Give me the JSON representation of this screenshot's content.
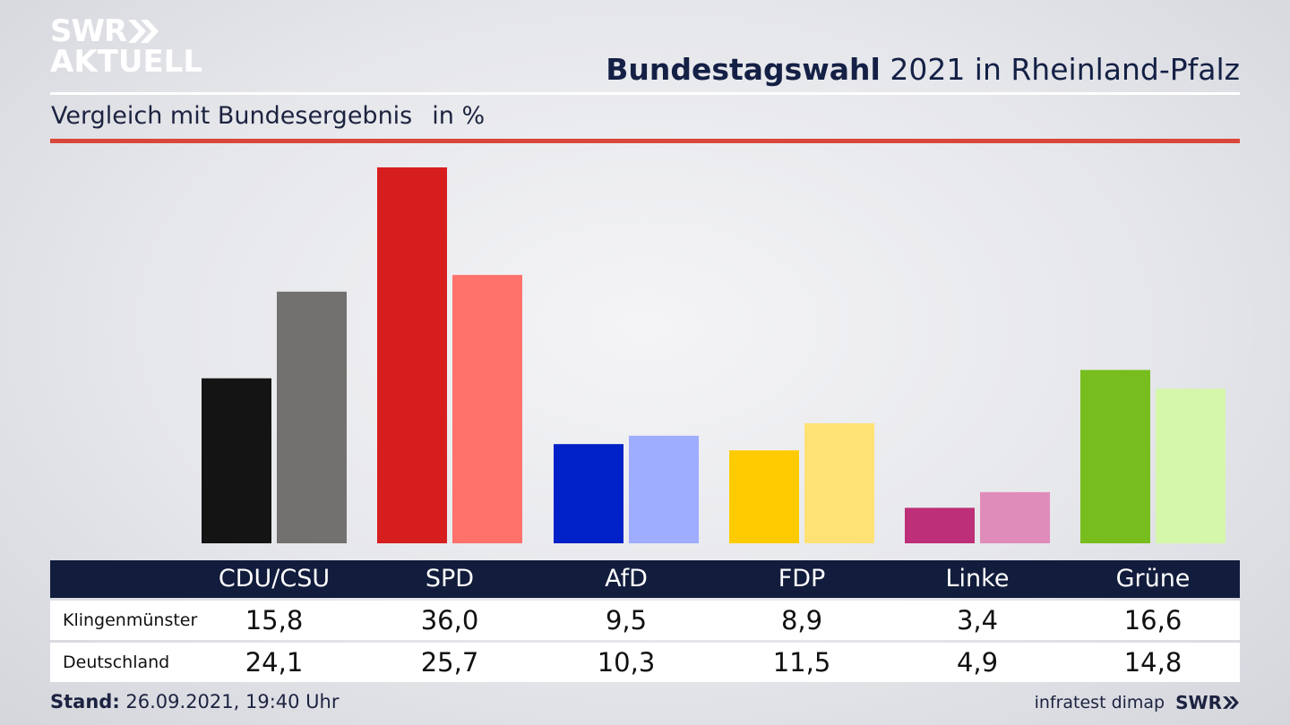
{
  "logo": {
    "line1": "SWR",
    "line2": "AKTUELL"
  },
  "header": {
    "title_bold": "Bundestagswahl",
    "title_rest": " 2021 in Rheinland-Pfalz"
  },
  "subheader": {
    "text": "Vergleich mit Bundesergebnis",
    "unit": "in %"
  },
  "colors": {
    "navy": "#121c3c",
    "accent_red": "#d9473a"
  },
  "chart_data": {
    "type": "bar",
    "categories": [
      "CDU/CSU",
      "SPD",
      "AfD",
      "FDP",
      "Linke",
      "Grüne"
    ],
    "series": [
      {
        "name": "Klingenmünster",
        "values": [
          15.8,
          36.0,
          9.5,
          8.9,
          3.4,
          16.6
        ],
        "display": [
          "15,8",
          "36,0",
          "9,5",
          "8,9",
          "3,4",
          "16,6"
        ],
        "colors": [
          "#141414",
          "#d71e1f",
          "#0021c7",
          "#fecb00",
          "#bd2f78",
          "#78bd1e"
        ]
      },
      {
        "name": "Deutschland",
        "values": [
          24.1,
          25.7,
          10.3,
          11.5,
          4.9,
          14.8
        ],
        "display": [
          "24,1",
          "25,7",
          "10,3",
          "11,5",
          "4,9",
          "14,8"
        ],
        "colors": [
          "#73716f",
          "#ff726c",
          "#9eadff",
          "#fee275",
          "#e08cbb",
          "#d4f7aa"
        ]
      }
    ],
    "ylim": [
      0,
      36.0
    ],
    "grid": false,
    "legend": "table-below"
  },
  "footer": {
    "stand_label": "Stand:",
    "stand_value": " 26.09.2021, 19:40 Uhr",
    "source": "infratest dimap",
    "source_logo": "SWR"
  }
}
